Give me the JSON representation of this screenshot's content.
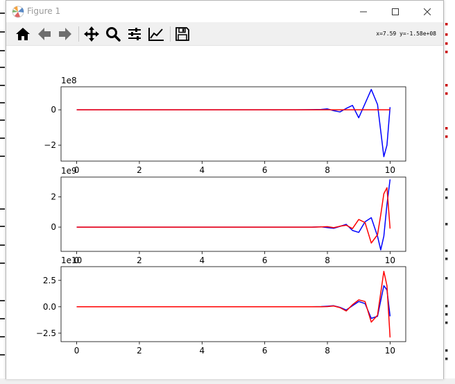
{
  "window": {
    "title": "Figure 1",
    "controls": [
      "minimize",
      "maximize",
      "close"
    ]
  },
  "toolbar": {
    "buttons": [
      {
        "name": "home",
        "icon": "home-icon"
      },
      {
        "name": "back",
        "icon": "arrow-left-icon"
      },
      {
        "name": "forward",
        "icon": "arrow-right-icon"
      },
      {
        "name": "pan",
        "icon": "move-icon"
      },
      {
        "name": "zoom",
        "icon": "magnifier-icon"
      },
      {
        "name": "configure-subplots",
        "icon": "sliders-icon"
      },
      {
        "name": "edit-axes",
        "icon": "chart-line-icon"
      },
      {
        "name": "save",
        "icon": "floppy-icon"
      }
    ],
    "coords": "x=7.59 y=-1.58e+08"
  },
  "colors": {
    "series_a": "#0000ff",
    "series_b": "#ff0000",
    "titlebar_text": "#9a9a9a",
    "toolbar_bg": "#f0f0f0"
  },
  "chart_data": [
    {
      "type": "line",
      "xlim": [
        -0.5,
        10.5
      ],
      "ylim": [
        -2.9,
        1.3
      ],
      "exponent_label": "1e8",
      "xticks": [
        "0",
        "2",
        "4",
        "6",
        "8",
        "10"
      ],
      "yticks": [
        {
          "value": 0,
          "label": "0"
        },
        {
          "value": -2,
          "label": "−2"
        }
      ],
      "series": [
        {
          "color": "blue",
          "x": [
            0,
            7.0,
            7.5,
            7.8,
            8.0,
            8.2,
            8.4,
            8.6,
            8.8,
            9.0,
            9.2,
            9.4,
            9.6,
            9.8,
            9.9,
            10.0
          ],
          "y": [
            0,
            0,
            0.01,
            0.02,
            0.05,
            -0.05,
            -0.12,
            0.08,
            0.25,
            -0.45,
            0.35,
            1.15,
            0.3,
            -2.65,
            -2.0,
            0.15
          ]
        },
        {
          "color": "red",
          "x": [
            0,
            8.0,
            10.0
          ],
          "y": [
            0,
            0,
            0
          ]
        }
      ]
    },
    {
      "type": "line",
      "xlim": [
        -0.5,
        10.5
      ],
      "ylim": [
        -1.6,
        3.3
      ],
      "exponent_label": "1e9",
      "xticks": [
        "0",
        "2",
        "4",
        "6",
        "8",
        "10"
      ],
      "yticks": [
        {
          "value": 2,
          "label": "2"
        },
        {
          "value": 0,
          "label": "0"
        }
      ],
      "series": [
        {
          "color": "blue",
          "x": [
            0,
            7.5,
            7.8,
            8.0,
            8.2,
            8.4,
            8.6,
            8.8,
            9.0,
            9.2,
            9.4,
            9.6,
            9.7,
            9.8,
            9.9,
            10.0
          ],
          "y": [
            0,
            0,
            0.02,
            -0.03,
            -0.08,
            0.05,
            0.18,
            -0.22,
            -0.35,
            0.35,
            0.62,
            -0.6,
            -1.5,
            -0.6,
            1.5,
            3.15
          ]
        },
        {
          "color": "red",
          "x": [
            0,
            7.5,
            7.8,
            8.0,
            8.2,
            8.4,
            8.6,
            8.8,
            9.0,
            9.2,
            9.4,
            9.6,
            9.7,
            9.8,
            9.9,
            10.0
          ],
          "y": [
            0,
            0,
            0.01,
            0.03,
            -0.04,
            0.06,
            0.12,
            -0.1,
            0.5,
            0.3,
            -1.05,
            -0.5,
            0.8,
            2.2,
            2.6,
            -0.1
          ]
        }
      ]
    },
    {
      "type": "line",
      "xlim": [
        -0.5,
        10.5
      ],
      "ylim": [
        -3.3,
        3.8
      ],
      "exponent_label": "1e10",
      "xticks": [
        "0",
        "2",
        "4",
        "6",
        "8",
        "10"
      ],
      "yticks": [
        {
          "value": 2.5,
          "label": "2.5"
        },
        {
          "value": 0.0,
          "label": "0.0"
        },
        {
          "value": -2.5,
          "label": "−2.5"
        }
      ],
      "series": [
        {
          "color": "blue",
          "x": [
            0,
            7.5,
            7.8,
            8.0,
            8.2,
            8.4,
            8.6,
            8.8,
            9.0,
            9.2,
            9.4,
            9.6,
            9.8,
            9.9,
            10.0
          ],
          "y": [
            0,
            0,
            0.02,
            0.05,
            0.1,
            -0.05,
            -0.3,
            0.1,
            0.5,
            0.3,
            -1.1,
            -0.9,
            2.0,
            1.6,
            -0.9
          ]
        },
        {
          "color": "red",
          "x": [
            0,
            7.5,
            7.8,
            8.0,
            8.2,
            8.4,
            8.6,
            8.8,
            9.0,
            9.2,
            9.4,
            9.6,
            9.8,
            9.9,
            10.0
          ],
          "y": [
            0,
            0,
            0.01,
            0.02,
            0.08,
            -0.08,
            -0.4,
            0.2,
            0.65,
            0.5,
            -1.45,
            -0.8,
            3.35,
            2.0,
            -2.9
          ]
        }
      ]
    }
  ]
}
